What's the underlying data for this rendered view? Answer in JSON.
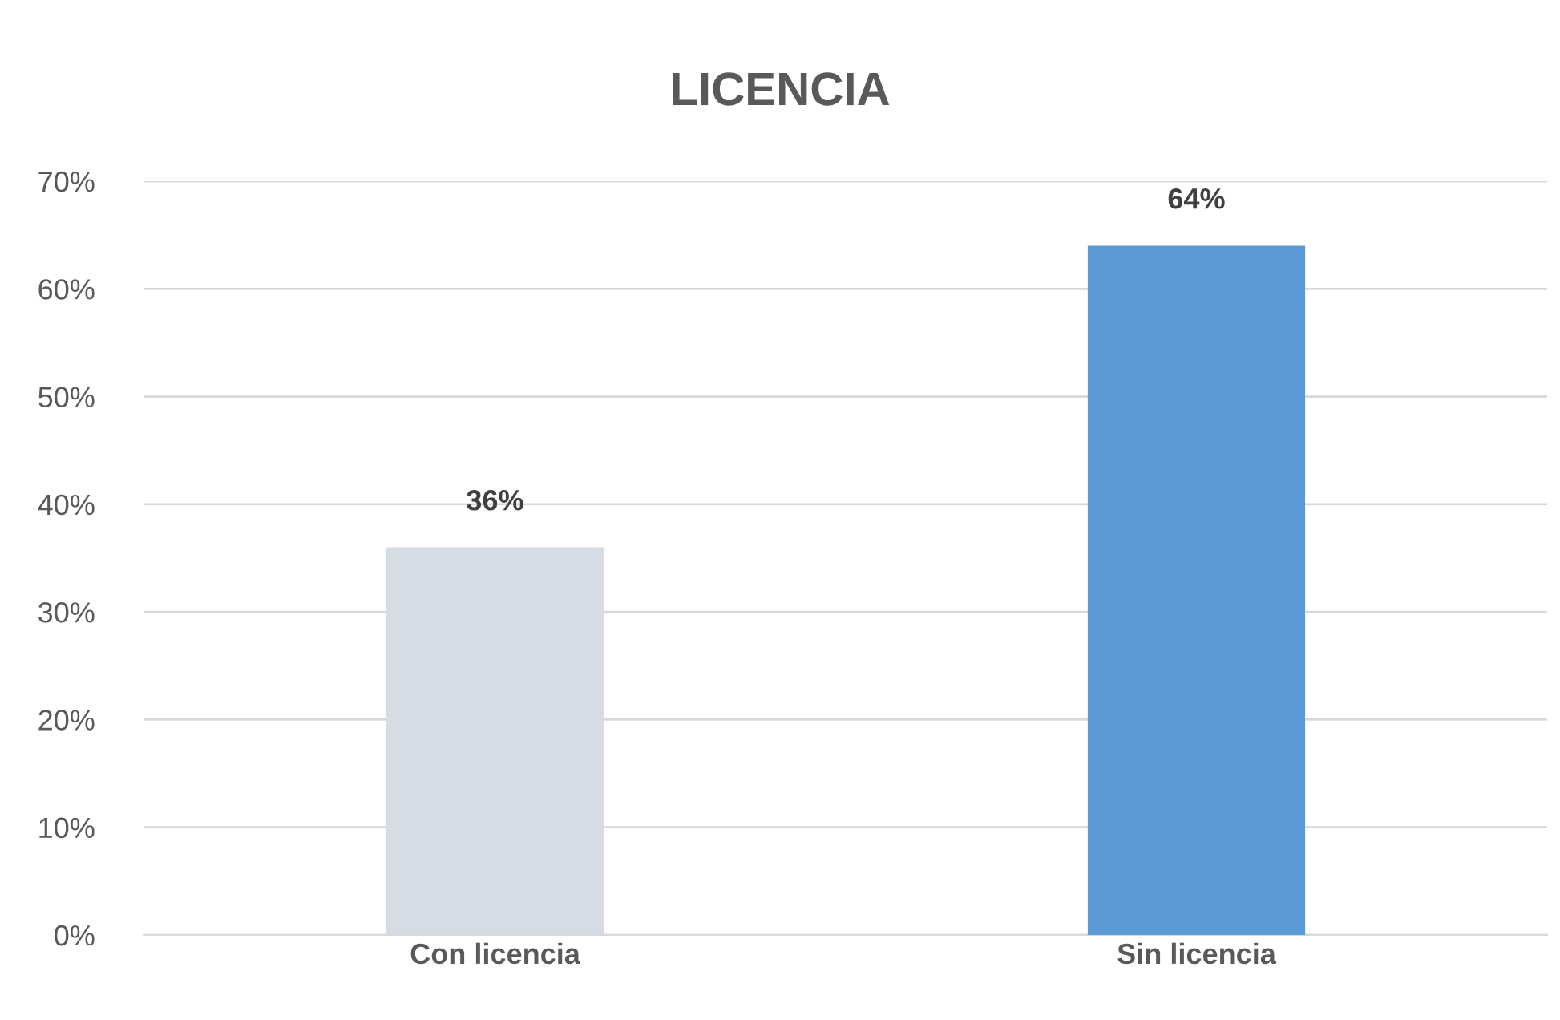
{
  "chart_data": {
    "type": "bar",
    "title": "LICENCIA",
    "categories": [
      "Con licencia",
      "Sin licencia"
    ],
    "values": [
      36,
      64
    ],
    "colors": [
      "#d6dce5",
      "#5b9bd5"
    ],
    "value_labels": [
      "36%",
      "64%"
    ],
    "ylim": [
      0,
      70
    ],
    "yticks": [
      {
        "value": 0,
        "label": "0%"
      },
      {
        "value": 10,
        "label": "10%"
      },
      {
        "value": 20,
        "label": "20%"
      },
      {
        "value": 30,
        "label": "30%"
      },
      {
        "value": 40,
        "label": "40%"
      },
      {
        "value": 50,
        "label": "50%"
      },
      {
        "value": 60,
        "label": "60%"
      },
      {
        "value": 70,
        "label": "70%"
      }
    ],
    "grid": "y",
    "legend": false
  }
}
